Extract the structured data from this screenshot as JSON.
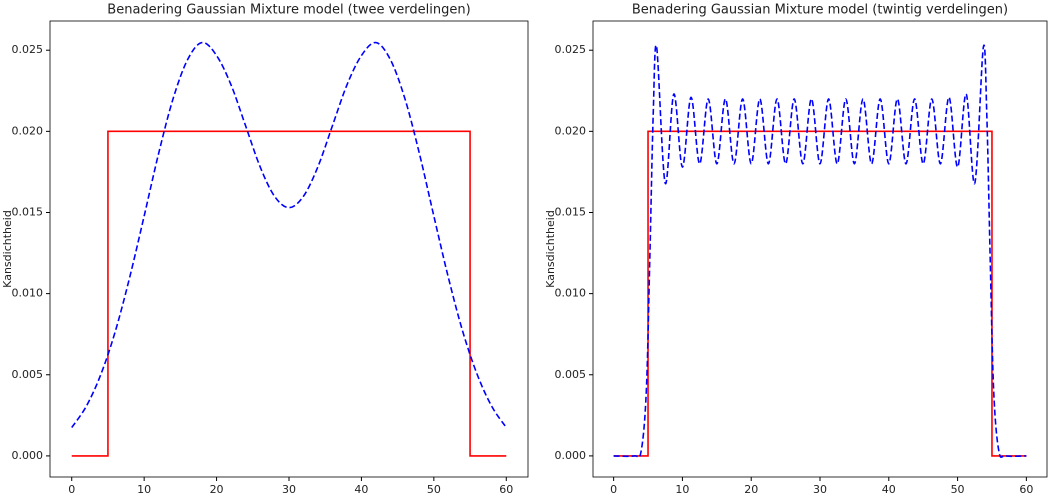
{
  "chart_data": [
    {
      "type": "line",
      "title": "Benadering Gaussian Mixture model (twee verdelingen)",
      "y_label": "Kansdichtheid",
      "xlim": [
        -3,
        63
      ],
      "xticks": [
        0,
        10,
        20,
        30,
        40,
        50,
        60
      ],
      "ylim": [
        -0.0013,
        0.0268
      ],
      "yticks": [
        {
          "value": 0,
          "label": "0.000"
        },
        {
          "value": 0.005,
          "label": "0.005"
        },
        {
          "value": 0.01,
          "label": "0.010"
        },
        {
          "value": 0.015,
          "label": "0.015"
        },
        {
          "value": 0.02,
          "label": "0.020"
        },
        {
          "value": 0.025,
          "label": "0.025"
        }
      ],
      "series": [
        {
          "color": "#ff0000",
          "dashed": false,
          "x": [
            0,
            5,
            5,
            55,
            55,
            60
          ],
          "values": [
            0,
            0,
            0.02,
            0.02,
            0,
            0
          ]
        },
        {
          "color": "#0000ff",
          "dashed": true,
          "x": [
            0,
            2,
            4,
            6,
            8,
            10,
            12,
            14,
            16,
            18,
            20,
            22,
            24,
            26,
            28,
            30,
            32,
            34,
            36,
            38,
            40,
            42,
            44,
            46,
            48,
            50,
            52,
            54,
            56,
            58,
            60
          ],
          "values": [
            0.00175,
            0.00305,
            0.005,
            0.00765,
            0.011,
            0.01478,
            0.01864,
            0.02202,
            0.02442,
            0.02547,
            0.02467,
            0.02286,
            0.02035,
            0.01783,
            0.016,
            0.0153,
            0.016,
            0.01783,
            0.02035,
            0.02286,
            0.02467,
            0.02547,
            0.02442,
            0.02202,
            0.01864,
            0.01478,
            0.011,
            0.00765,
            0.005,
            0.00305,
            0.00175
          ]
        }
      ]
    },
    {
      "type": "line",
      "title": "Benadering Gaussian Mixture model (twintig verdelingen)",
      "y_label": "Kansdichtheid",
      "xlim": [
        -3,
        63
      ],
      "xticks": [
        0,
        10,
        20,
        30,
        40,
        50,
        60
      ],
      "ylim": [
        -0.0013,
        0.0268
      ],
      "yticks": [
        {
          "value": 0,
          "label": "0.000"
        },
        {
          "value": 0.005,
          "label": "0.005"
        },
        {
          "value": 0.01,
          "label": "0.010"
        },
        {
          "value": 0.015,
          "label": "0.015"
        },
        {
          "value": 0.02,
          "label": "0.020"
        },
        {
          "value": 0.025,
          "label": "0.025"
        }
      ],
      "series": [
        {
          "color": "#ff0000",
          "dashed": false,
          "x": [
            0,
            5,
            5,
            55,
            55,
            60
          ],
          "values": [
            0,
            0,
            0.02,
            0.02,
            0,
            0
          ]
        },
        {
          "color": "#0000ff",
          "dashed": true,
          "x": [
            0,
            3,
            4,
            4.75,
            5.25,
            5.75,
            6.25,
            7.5,
            8.75,
            10,
            11.25,
            12.5,
            13.75,
            15,
            16.25,
            17.5,
            18.75,
            20,
            21.25,
            22.5,
            23.75,
            25,
            26.25,
            27.5,
            28.75,
            30,
            31.25,
            32.5,
            33.75,
            35,
            36.25,
            37.5,
            38.75,
            40,
            41.25,
            42.5,
            43.75,
            45,
            46.25,
            47.5,
            48.75,
            50,
            51.25,
            52.5,
            53.75,
            54.25,
            54.75,
            55.25,
            56,
            57,
            60
          ],
          "values": [
            0,
            0,
            0.0003,
            0.004,
            0.012,
            0.021,
            0.0252,
            0.0168,
            0.0223,
            0.0178,
            0.0221,
            0.018,
            0.022,
            0.018,
            0.022,
            0.018,
            0.022,
            0.018,
            0.022,
            0.018,
            0.022,
            0.018,
            0.022,
            0.018,
            0.022,
            0.018,
            0.022,
            0.018,
            0.022,
            0.018,
            0.022,
            0.018,
            0.022,
            0.018,
            0.022,
            0.018,
            0.022,
            0.018,
            0.022,
            0.018,
            0.0221,
            0.0178,
            0.0223,
            0.0168,
            0.0252,
            0.021,
            0.012,
            0.004,
            0.0003,
            0,
            0
          ]
        }
      ]
    }
  ]
}
